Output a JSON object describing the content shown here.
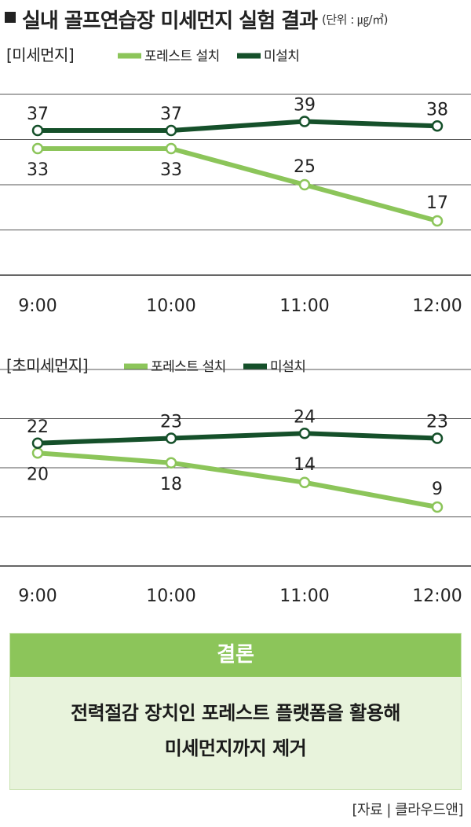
{
  "title": "실내 골프연습장 미세먼지 실험 결과",
  "unit": "(단위 : ㎍/㎥)",
  "colors": {
    "installed": "#8cc55a",
    "not_installed": "#15502a",
    "grid": "#555555",
    "box_bg": "#e8f3dc",
    "box_header": "#8cc55a"
  },
  "chart_data": [
    {
      "type": "line",
      "panel_label": "[미세먼지]",
      "categories": [
        "9:00",
        "10:00",
        "11:00",
        "12:00"
      ],
      "series": [
        {
          "name": "포레스트 설치",
          "values": [
            33,
            33,
            25,
            17
          ]
        },
        {
          "name": "미설치",
          "values": [
            37,
            37,
            39,
            38
          ]
        }
      ],
      "ylim": [
        5,
        45
      ],
      "gridlines": [
        15,
        25,
        35,
        45
      ],
      "grid": true,
      "legend": "top-left"
    },
    {
      "type": "line",
      "panel_label": "[초미세먼지]",
      "categories": [
        "9:00",
        "10:00",
        "11:00",
        "12:00"
      ],
      "series": [
        {
          "name": "포레스트 설치",
          "values": [
            20,
            18,
            14,
            9
          ]
        },
        {
          "name": "미설치",
          "values": [
            22,
            23,
            24,
            23
          ]
        }
      ],
      "ylim": [
        -3,
        33
      ],
      "gridlines": [
        7,
        17,
        27,
        37
      ],
      "grid": true,
      "legend": "top-left"
    }
  ],
  "conclusion": {
    "header": "결론",
    "line1": "전력절감 장치인 포레스트 플랫폼을 활용해",
    "line2": "미세먼지까지 제거"
  },
  "source": "[자료 | 클라우드앤]"
}
